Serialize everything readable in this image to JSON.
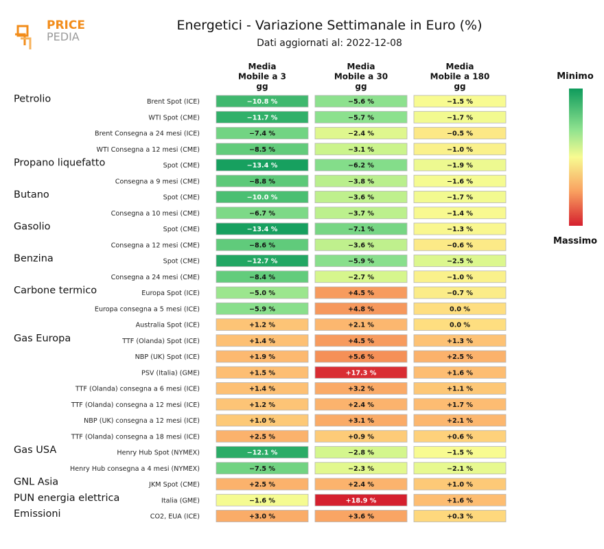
{
  "logo": {
    "top": "PRICE",
    "bottom": "PEDIA"
  },
  "title": "Energetici - Variazione Settimanale in Euro (%)",
  "subtitle": "Dati aggiornati al: 2022-12-08",
  "legend": {
    "min_label": "Minimo",
    "max_label": "Massimo",
    "min_color": "#0e9b5c",
    "mid_color": "#f8fb91",
    "max_color": "#d51f2e"
  },
  "chart_data": {
    "type": "heatmap",
    "title": "Energetici - Variazione Settimanale in Euro (%)",
    "columns": [
      {
        "lines": [
          "Media",
          "Mobile a 3",
          "gg"
        ]
      },
      {
        "lines": [
          "Media",
          "Mobile a 30",
          "gg"
        ]
      },
      {
        "lines": [
          "Media",
          "Mobile a 180",
          "gg"
        ]
      }
    ],
    "rows": [
      {
        "group": "Petrolio",
        "label": "Brent Spot (ICE)",
        "values": [
          -10.8,
          -5.6,
          -1.5
        ],
        "texts": [
          "−10.8 %",
          "−5.6 %",
          "−1.5 %"
        ]
      },
      {
        "group": "",
        "label": "WTI Spot (CME)",
        "values": [
          -11.7,
          -5.7,
          -1.7
        ],
        "texts": [
          "−11.7 %",
          "−5.7 %",
          "−1.7 %"
        ]
      },
      {
        "group": "",
        "label": "Brent Consegna a 24 mesi (ICE)",
        "values": [
          -7.4,
          -2.4,
          -0.5
        ],
        "texts": [
          "−7.4 %",
          "−2.4 %",
          "−0.5 %"
        ]
      },
      {
        "group": "",
        "label": "WTI Consegna a 12 mesi (CME)",
        "values": [
          -8.5,
          -3.1,
          -1.0
        ],
        "texts": [
          "−8.5 %",
          "−3.1 %",
          "−1.0 %"
        ]
      },
      {
        "group": "Propano liquefatto",
        "label": "Spot (CME)",
        "values": [
          -13.4,
          -6.2,
          -1.9
        ],
        "texts": [
          "−13.4 %",
          "−6.2 %",
          "−1.9 %"
        ]
      },
      {
        "group": "",
        "label": "Consegna a 9 mesi (CME)",
        "values": [
          -8.8,
          -3.8,
          -1.6
        ],
        "texts": [
          "−8.8 %",
          "−3.8 %",
          "−1.6 %"
        ]
      },
      {
        "group": "Butano",
        "label": "Spot (CME)",
        "values": [
          -10.0,
          -3.6,
          -1.7
        ],
        "texts": [
          "−10.0 %",
          "−3.6 %",
          "−1.7 %"
        ]
      },
      {
        "group": "",
        "label": "Consegna a 10 mesi (CME)",
        "values": [
          -6.7,
          -3.7,
          -1.4
        ],
        "texts": [
          "−6.7 %",
          "−3.7 %",
          "−1.4 %"
        ]
      },
      {
        "group": "Gasolio",
        "label": "Spot (CME)",
        "values": [
          -13.4,
          -7.1,
          -1.3
        ],
        "texts": [
          "−13.4 %",
          "−7.1 %",
          "−1.3 %"
        ]
      },
      {
        "group": "",
        "label": "Consegna a 12 mesi (CME)",
        "values": [
          -8.6,
          -3.6,
          -0.6
        ],
        "texts": [
          "−8.6 %",
          "−3.6 %",
          "−0.6 %"
        ]
      },
      {
        "group": "Benzina",
        "label": "Spot (CME)",
        "values": [
          -12.7,
          -5.9,
          -2.5
        ],
        "texts": [
          "−12.7 %",
          "−5.9 %",
          "−2.5 %"
        ]
      },
      {
        "group": "",
        "label": "Consegna a 24 mesi (CME)",
        "values": [
          -8.4,
          -2.7,
          -1.0
        ],
        "texts": [
          "−8.4 %",
          "−2.7 %",
          "−1.0 %"
        ]
      },
      {
        "group": "Carbone termico",
        "label": "Europa Spot (ICE)",
        "values": [
          -5.0,
          4.5,
          -0.7
        ],
        "texts": [
          "−5.0 %",
          "+4.5 %",
          "−0.7 %"
        ]
      },
      {
        "group": "",
        "label": "Europa consegna a 5 mesi (ICE)",
        "values": [
          -5.9,
          4.8,
          0.0
        ],
        "texts": [
          "−5.9 %",
          "+4.8 %",
          "0.0 %"
        ]
      },
      {
        "group": "",
        "label": "Australia Spot (ICE)",
        "values": [
          1.2,
          2.1,
          0.0
        ],
        "texts": [
          "+1.2 %",
          "+2.1 %",
          "0.0 %"
        ]
      },
      {
        "group": "Gas Europa",
        "label": "TTF (Olanda) Spot (ICE)",
        "values": [
          1.4,
          4.5,
          1.3
        ],
        "texts": [
          "+1.4 %",
          "+4.5 %",
          "+1.3 %"
        ]
      },
      {
        "group": "",
        "label": "NBP (UK) Spot (ICE)",
        "values": [
          1.9,
          5.6,
          2.5
        ],
        "texts": [
          "+1.9 %",
          "+5.6 %",
          "+2.5 %"
        ]
      },
      {
        "group": "",
        "label": "PSV (Italia) (GME)",
        "values": [
          1.5,
          17.3,
          1.6
        ],
        "texts": [
          "+1.5 %",
          "+17.3 %",
          "+1.6 %"
        ]
      },
      {
        "group": "",
        "label": "TTF (Olanda) consegna a 6 mesi (ICE)",
        "values": [
          1.4,
          3.2,
          1.1
        ],
        "texts": [
          "+1.4 %",
          "+3.2 %",
          "+1.1 %"
        ]
      },
      {
        "group": "",
        "label": "TTF (Olanda) consegna a 12 mesi (ICE)",
        "values": [
          1.2,
          2.4,
          1.7
        ],
        "texts": [
          "+1.2 %",
          "+2.4 %",
          "+1.7 %"
        ]
      },
      {
        "group": "",
        "label": "NBP (UK) consegna a 12 mesi (ICE)",
        "values": [
          1.0,
          3.1,
          2.1
        ],
        "texts": [
          "+1.0 %",
          "+3.1 %",
          "+2.1 %"
        ]
      },
      {
        "group": "",
        "label": "TTF (Olanda) consegna a 18 mesi (ICE)",
        "values": [
          2.5,
          0.9,
          0.6
        ],
        "texts": [
          "+2.5 %",
          "+0.9 %",
          "+0.6 %"
        ]
      },
      {
        "group": "Gas USA",
        "label": "Henry Hub Spot (NYMEX)",
        "values": [
          -12.1,
          -2.8,
          -1.5
        ],
        "texts": [
          "−12.1 %",
          "−2.8 %",
          "−1.5 %"
        ]
      },
      {
        "group": "",
        "label": "Henry Hub consegna a 4 mesi (NYMEX)",
        "values": [
          -7.5,
          -2.3,
          -2.1
        ],
        "texts": [
          "−7.5 %",
          "−2.3 %",
          "−2.1 %"
        ]
      },
      {
        "group": "GNL Asia",
        "label": "JKM Spot (CME)",
        "values": [
          2.5,
          2.4,
          1.0
        ],
        "texts": [
          "+2.5 %",
          "+2.4 %",
          "+1.0 %"
        ]
      },
      {
        "group": "PUN energia elettrica",
        "label": "Italia (GME)",
        "values": [
          -1.6,
          18.9,
          1.6
        ],
        "texts": [
          "−1.6 %",
          "+18.9 %",
          "+1.6 %"
        ]
      },
      {
        "group": "Emissioni",
        "label": "CO2, EUA (ICE)",
        "values": [
          3.0,
          3.6,
          0.3
        ],
        "texts": [
          "+3.0 %",
          "+3.6 %",
          "+0.3 %"
        ]
      }
    ]
  }
}
